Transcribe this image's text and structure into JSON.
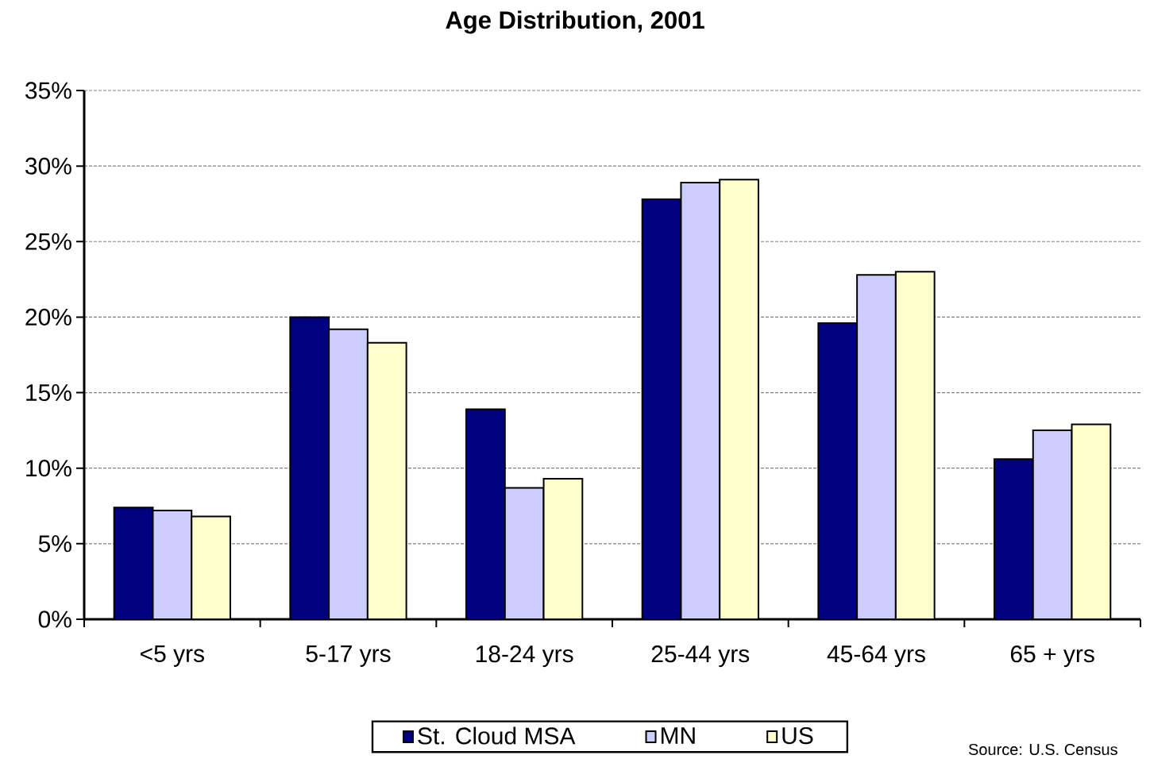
{
  "chart_data": {
    "type": "bar",
    "title": "Age Distribution, 2001",
    "categories": [
      "<5 yrs",
      "5-17 yrs",
      "18-24 yrs",
      "25-44 yrs",
      "45-64 yrs",
      "65 + yrs"
    ],
    "series": [
      {
        "name": "St. Cloud MSA",
        "color": "#000080",
        "values": [
          7.4,
          20.0,
          13.9,
          27.8,
          19.6,
          10.6
        ]
      },
      {
        "name": "MN",
        "color": "#ccccff",
        "values": [
          7.2,
          19.2,
          8.7,
          28.9,
          22.8,
          12.5
        ]
      },
      {
        "name": "US",
        "color": "#ffffcc",
        "values": [
          6.8,
          18.3,
          9.3,
          29.1,
          23.0,
          12.9
        ]
      }
    ],
    "ylim": [
      0,
      35
    ],
    "yticks": [
      {
        "value": 0,
        "label": "0%"
      },
      {
        "value": 5,
        "label": "5%"
      },
      {
        "value": 10,
        "label": "10%"
      },
      {
        "value": 15,
        "label": "15%"
      },
      {
        "value": 20,
        "label": "20%"
      },
      {
        "value": 25,
        "label": "25%"
      },
      {
        "value": 30,
        "label": "30%"
      },
      {
        "value": 35,
        "label": "35%"
      }
    ],
    "grid": "y",
    "legend": "bottom",
    "annotations": [
      "Source: U.S. Census"
    ]
  }
}
